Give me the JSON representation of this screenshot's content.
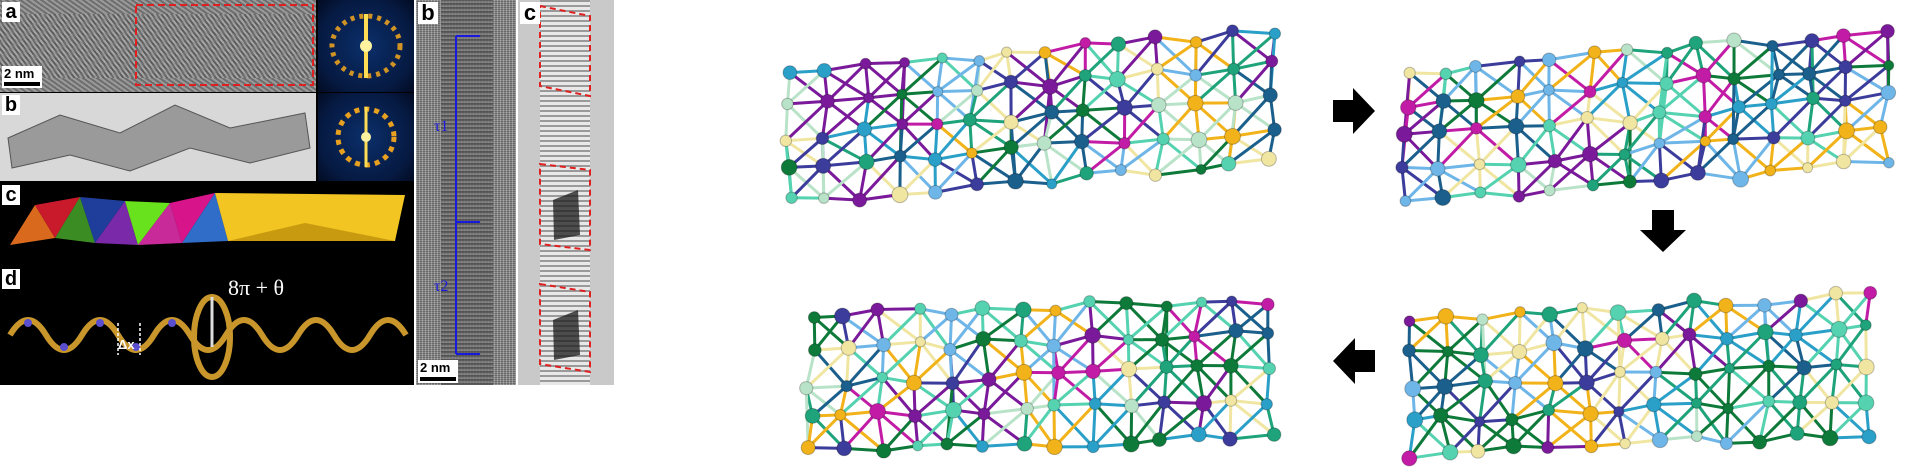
{
  "panel_labels": {
    "a": "a",
    "b": "b",
    "c": "c",
    "d": "d",
    "mid_b": "b",
    "mid_c": "c"
  },
  "annotations": {
    "scale_left": "2 nm",
    "scale_mid": "2 nm",
    "tau1": "τ1",
    "tau2": "τ2",
    "rotation": "8π + θ",
    "delta_x": "Δx"
  },
  "colors": {
    "dashed_box": "#e02020",
    "tau_marker": "#1a1adf",
    "gold_face": "#f2c523",
    "helix": "#c8962b",
    "bead": "#5a4fcf"
  },
  "polyhedra_faces": [
    "#d9691c",
    "#3c8c24",
    "#c81a2a",
    "#1f3e9c",
    "#c92a9a",
    "#68e21c",
    "#d8148a",
    "#2f6dc8"
  ],
  "atom_palette": [
    "#1b5f8c",
    "#2aa0c8",
    "#7a1a9a",
    "#c21ca6",
    "#1ea37a",
    "#55d2b0",
    "#b9e3c8",
    "#f0e6a2",
    "#f2b31a",
    "#0e7a3a",
    "#6fb6e8",
    "#3c3c9c"
  ],
  "arrows": [
    "right",
    "down",
    "left"
  ]
}
